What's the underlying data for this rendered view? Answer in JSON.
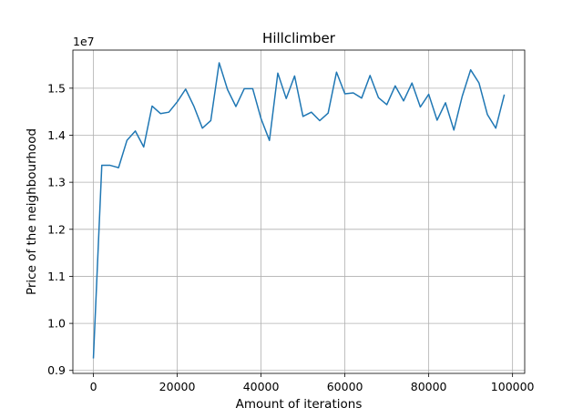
{
  "chart_data": {
    "type": "line",
    "title": "Hillclimber",
    "xlabel": "Amount of iterations",
    "ylabel": "Price of the neighbourhood",
    "y_offset_label": "1e7",
    "y_scale_factor": 10000000,
    "xlim": [
      -4900,
      102900
    ],
    "ylim": [
      8937000,
      15810000
    ],
    "xticks": [
      0,
      20000,
      40000,
      60000,
      80000,
      100000
    ],
    "xtick_labels": [
      "0",
      "20000",
      "40000",
      "60000",
      "80000",
      "100000"
    ],
    "yticks": [
      9000000,
      10000000,
      11000000,
      12000000,
      13000000,
      14000000,
      15000000
    ],
    "ytick_labels": [
      "0.9",
      "1.0",
      "1.1",
      "1.2",
      "1.3",
      "1.4",
      "1.5"
    ],
    "grid": true,
    "colors": {
      "line": "#1f77b4",
      "grid": "#b0b0b0",
      "axes": "#000000"
    },
    "series": [
      {
        "x": [
          0,
          2000,
          4000,
          6000,
          8000,
          10000,
          12000,
          14000,
          16000,
          18000,
          20000,
          22000,
          24000,
          26000,
          28000,
          30000,
          32000,
          34000,
          36000,
          38000,
          40000,
          42000,
          44000,
          46000,
          48000,
          50000,
          52000,
          54000,
          56000,
          58000,
          60000,
          62000,
          64000,
          66000,
          68000,
          70000,
          72000,
          74000,
          76000,
          78000,
          80000,
          82000,
          84000,
          86000,
          88000,
          90000,
          92000,
          94000,
          96000,
          98000
        ],
        "values": [
          9270000,
          13360000,
          13360000,
          13310000,
          13890000,
          14090000,
          13750000,
          14620000,
          14460000,
          14490000,
          14710000,
          14980000,
          14610000,
          14150000,
          14310000,
          15540000,
          14970000,
          14610000,
          14990000,
          14990000,
          14350000,
          13890000,
          15320000,
          14780000,
          15260000,
          14400000,
          14490000,
          14310000,
          14470000,
          15340000,
          14880000,
          14900000,
          14790000,
          15270000,
          14800000,
          14650000,
          15050000,
          14730000,
          15110000,
          14600000,
          14870000,
          14320000,
          14690000,
          14110000,
          14830000,
          15390000,
          15110000,
          14440000,
          14150000,
          14850000
        ]
      }
    ]
  }
}
